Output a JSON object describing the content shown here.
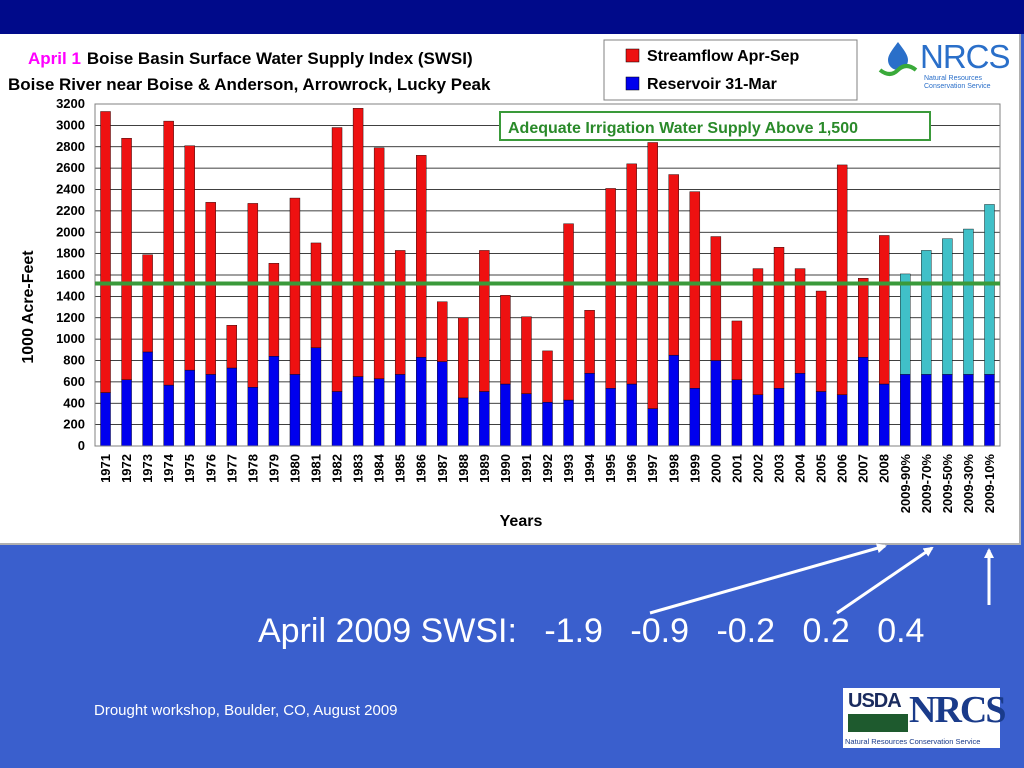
{
  "chart_data": {
    "type": "bar",
    "stacked": true,
    "title_prefix": "April 1",
    "title": "Boise Basin Surface Water Supply Index (SWSI)",
    "subtitle": "Boise River near Boise & Anderson, Arrowrock, Lucky Peak",
    "xlabel": "Years",
    "ylabel": "1000 Acre-Feet",
    "ylim": [
      0,
      3200
    ],
    "yticks": [
      0,
      200,
      400,
      600,
      800,
      1000,
      1200,
      1400,
      1600,
      1800,
      2000,
      2200,
      2400,
      2600,
      2800,
      3000,
      3200
    ],
    "grid": true,
    "legend_position": "top-right",
    "categories": [
      "1971",
      "1972",
      "1973",
      "1974",
      "1975",
      "1976",
      "1977",
      "1978",
      "1979",
      "1980",
      "1981",
      "1982",
      "1983",
      "1984",
      "1985",
      "1986",
      "1987",
      "1988",
      "1989",
      "1990",
      "1991",
      "1992",
      "1993",
      "1994",
      "1995",
      "1996",
      "1997",
      "1998",
      "1999",
      "2000",
      "2001",
      "2002",
      "2003",
      "2004",
      "2005",
      "2006",
      "2007",
      "2008",
      "2009-90%",
      "2009-70%",
      "2009-50%",
      "2009-30%",
      "2009-10%"
    ],
    "series": [
      {
        "name": "Reservoir 31-Mar",
        "color": "#0000ee",
        "values": [
          500,
          620,
          880,
          570,
          710,
          670,
          730,
          550,
          840,
          670,
          920,
          510,
          650,
          630,
          670,
          830,
          790,
          450,
          510,
          580,
          490,
          410,
          430,
          680,
          540,
          580,
          350,
          850,
          540,
          800,
          620,
          480,
          540,
          680,
          510,
          480,
          830,
          580,
          670,
          670,
          670,
          670,
          670
        ]
      },
      {
        "name": "Streamflow Apr-Sep",
        "color": "#ee1111",
        "forecast_color": "#40c0c8",
        "values": [
          2630,
          2260,
          910,
          2470,
          2100,
          1610,
          400,
          1720,
          870,
          1650,
          980,
          2470,
          2510,
          2160,
          1160,
          1890,
          560,
          750,
          1320,
          830,
          720,
          480,
          1650,
          590,
          1870,
          2060,
          2490,
          1690,
          1840,
          1160,
          550,
          1180,
          1320,
          980,
          940,
          2150,
          740,
          1390,
          940,
          1160,
          1270,
          1360,
          1590
        ]
      }
    ],
    "forecast_categories_count": 5,
    "reference_line": {
      "value": 1520,
      "label": "Adequate Irrigation Water Supply Above 1,500",
      "color": "#3a9a3a"
    }
  },
  "logo_top": {
    "brand": "NRCS",
    "subtitle_lines": [
      "Natural Resources",
      "Conservation Service"
    ],
    "accent": "#2a6fc9"
  },
  "swsi": {
    "label": "April 2009 SWSI:",
    "values": [
      "-1.9",
      "-0.9",
      "-0.2",
      "0.2",
      "0.4"
    ]
  },
  "footer": {
    "note": "Drought workshop, Boulder, CO, August 2009"
  },
  "logo_bottom": {
    "usda": "USDA",
    "nrcs": "NRCS",
    "subtitle": "Natural Resources Conservation Service"
  },
  "colors": {
    "background": "#3a5fcd",
    "top_band": "#000a8a",
    "arrow": "#ffffff"
  }
}
